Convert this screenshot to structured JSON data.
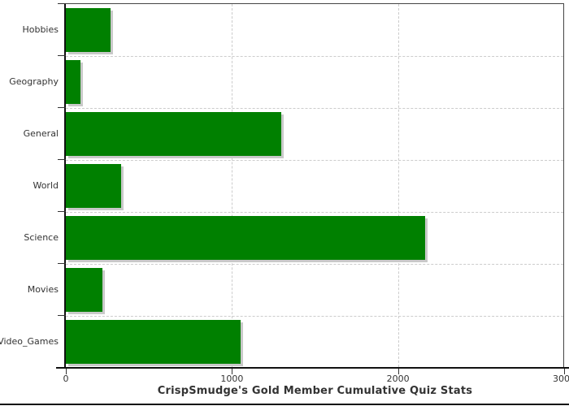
{
  "chart_data": {
    "type": "bar",
    "orientation": "horizontal",
    "title": "CrispSmudge's Gold Member Cumulative Quiz Stats",
    "categories": [
      "Hobbies",
      "Geography",
      "General",
      "World",
      "Science",
      "Movies",
      "Video_Games"
    ],
    "values": [
      271,
      90,
      1297,
      333,
      2165,
      219,
      1054
    ],
    "xlabel": "",
    "ylabel": "",
    "xlim": [
      0,
      3000
    ],
    "x_ticks": [
      0,
      1000,
      2000,
      3000
    ],
    "x_tick_labels": [
      "0",
      "1000",
      "2000",
      "3000"
    ],
    "grid": true,
    "legend": false,
    "bar_color": "#008000",
    "bar_shadow_color": "#c9c9c9",
    "grid_color": "#cccccc",
    "axis_color": "#111111",
    "text_color": "#333333"
  }
}
